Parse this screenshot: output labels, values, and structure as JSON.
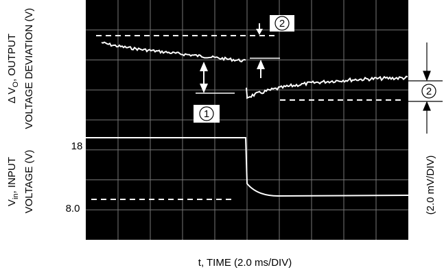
{
  "left_labels": {
    "output_line1": {
      "prefix": "Δ V",
      "sub": "O",
      "suffix": ", OUTPUT"
    },
    "output_line2": "VOLTAGE DEVIATION (V)",
    "input_line1": {
      "prefix": "V",
      "sub": "in",
      "suffix": ", INPUT"
    },
    "input_line2": "VOLTAGE (V)"
  },
  "input_ticks": [
    "18",
    "8.0"
  ],
  "x_axis_label": {
    "prefix": "t, TIME (",
    "scale": "2.0",
    "suffix": " ms/DIV)"
  },
  "right_axis_label": "(2.0 mV/DIV)",
  "annotations": [
    "1",
    "2",
    "2"
  ]
}
